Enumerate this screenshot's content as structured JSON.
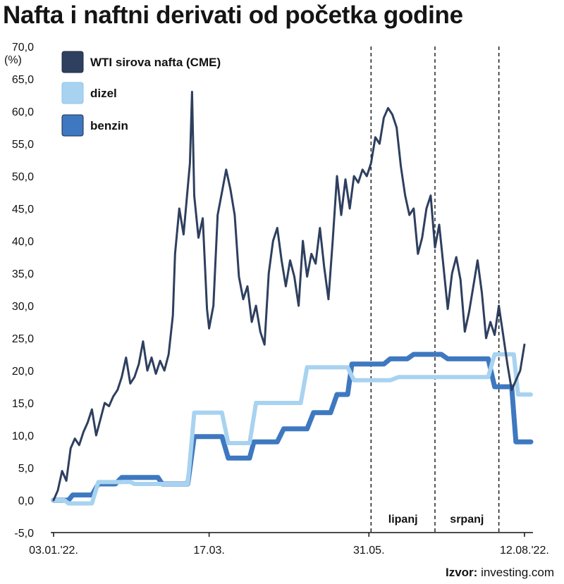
{
  "title": "Nafta i naftni derivati od početka godine",
  "source": {
    "label": "Izvor:",
    "value": "investing.com"
  },
  "chart_data": {
    "type": "line",
    "ylabel": "(%)",
    "ylim": [
      -5,
      70
    ],
    "yticks": [
      -5,
      0,
      5,
      10,
      15,
      20,
      25,
      30,
      35,
      40,
      45,
      50,
      55,
      60,
      65,
      70
    ],
    "ytick_labels": [
      "-5,0",
      "0,0",
      "5,0",
      "10,0",
      "15,0",
      "20,0",
      "25,0",
      "30,0",
      "35,0",
      "40,0",
      "45,0",
      "50,0",
      "55,0",
      "60,0",
      "65,0",
      "70,0"
    ],
    "xlim": [
      "2022-01-03",
      "2022-08-16"
    ],
    "xticks": [
      "2022-01-03",
      "2022-03-17",
      "2022-05-31",
      "2022-08-12"
    ],
    "xtick_labels": [
      "03.01.'22.",
      "17.03.",
      "31.05.",
      "12.08.'22."
    ],
    "period_lines": [
      "2022-06-01",
      "2022-07-01",
      "2022-07-31"
    ],
    "period_labels": [
      {
        "text": "lipanj",
        "from": "2022-06-01",
        "to": "2022-07-01"
      },
      {
        "text": "srpanj",
        "from": "2022-07-01",
        "to": "2022-07-31"
      }
    ],
    "legend_position": "top-left",
    "grid": false,
    "colors": {
      "wti": "#2e3f5f",
      "dizel": "#a8d3f0",
      "benzin": "#3e78c0"
    },
    "series": [
      {
        "name": "benzin",
        "key": "benzin",
        "points": [
          [
            "2022-01-03",
            0
          ],
          [
            "2022-01-10",
            0
          ],
          [
            "2022-01-12",
            0.8
          ],
          [
            "2022-01-21",
            0.8
          ],
          [
            "2022-01-24",
            2.5
          ],
          [
            "2022-02-01",
            2.5
          ],
          [
            "2022-02-04",
            3.5
          ],
          [
            "2022-02-21",
            3.5
          ],
          [
            "2022-02-23",
            2.5
          ],
          [
            "2022-03-07",
            2.5
          ],
          [
            "2022-03-10",
            9.8
          ],
          [
            "2022-03-23",
            9.8
          ],
          [
            "2022-03-26",
            6.5
          ],
          [
            "2022-04-05",
            6.5
          ],
          [
            "2022-04-07",
            9
          ],
          [
            "2022-04-18",
            9
          ],
          [
            "2022-04-21",
            11
          ],
          [
            "2022-05-02",
            11
          ],
          [
            "2022-05-05",
            13.5
          ],
          [
            "2022-05-13",
            13.5
          ],
          [
            "2022-05-16",
            16.3
          ],
          [
            "2022-05-21",
            16.3
          ],
          [
            "2022-05-23",
            21
          ],
          [
            "2022-06-07",
            21
          ],
          [
            "2022-06-10",
            21.8
          ],
          [
            "2022-06-18",
            21.8
          ],
          [
            "2022-06-21",
            22.5
          ],
          [
            "2022-07-04",
            22.5
          ],
          [
            "2022-07-07",
            21.8
          ],
          [
            "2022-07-26",
            21.8
          ],
          [
            "2022-07-29",
            17.5
          ],
          [
            "2022-08-06",
            17.5
          ],
          [
            "2022-08-08",
            9
          ],
          [
            "2022-08-15",
            9
          ]
        ]
      },
      {
        "name": "dizel",
        "key": "dizel",
        "points": [
          [
            "2022-01-03",
            0
          ],
          [
            "2022-01-08",
            0
          ],
          [
            "2022-01-10",
            -0.5
          ],
          [
            "2022-01-21",
            -0.5
          ],
          [
            "2022-01-24",
            2.8
          ],
          [
            "2022-02-08",
            2.8
          ],
          [
            "2022-02-10",
            2.5
          ],
          [
            "2022-03-07",
            2.5
          ],
          [
            "2022-03-10",
            13.5
          ],
          [
            "2022-03-23",
            13.5
          ],
          [
            "2022-03-26",
            8.8
          ],
          [
            "2022-04-05",
            8.8
          ],
          [
            "2022-04-08",
            15
          ],
          [
            "2022-04-29",
            15
          ],
          [
            "2022-05-02",
            20.5
          ],
          [
            "2022-05-21",
            20.5
          ],
          [
            "2022-05-24",
            18.5
          ],
          [
            "2022-06-10",
            18.5
          ],
          [
            "2022-06-14",
            19
          ],
          [
            "2022-07-26",
            19
          ],
          [
            "2022-07-29",
            22.5
          ],
          [
            "2022-08-07",
            22.5
          ],
          [
            "2022-08-09",
            16.3
          ],
          [
            "2022-08-15",
            16.3
          ]
        ]
      },
      {
        "name": "WTI sirova nafta (CME)",
        "key": "wti",
        "points": [
          [
            "2022-01-03",
            0
          ],
          [
            "2022-01-05",
            1.5
          ],
          [
            "2022-01-07",
            4.5
          ],
          [
            "2022-01-09",
            3
          ],
          [
            "2022-01-11",
            8
          ],
          [
            "2022-01-13",
            9.5
          ],
          [
            "2022-01-15",
            8.5
          ],
          [
            "2022-01-17",
            10.5
          ],
          [
            "2022-01-19",
            12
          ],
          [
            "2022-01-21",
            14
          ],
          [
            "2022-01-23",
            10
          ],
          [
            "2022-01-25",
            12.5
          ],
          [
            "2022-01-27",
            15
          ],
          [
            "2022-01-29",
            14.5
          ],
          [
            "2022-01-31",
            16
          ],
          [
            "2022-02-02",
            17
          ],
          [
            "2022-02-04",
            19
          ],
          [
            "2022-02-06",
            22
          ],
          [
            "2022-02-08",
            18
          ],
          [
            "2022-02-10",
            19
          ],
          [
            "2022-02-12",
            21
          ],
          [
            "2022-02-14",
            24.5
          ],
          [
            "2022-02-16",
            20
          ],
          [
            "2022-02-18",
            22
          ],
          [
            "2022-02-20",
            19.5
          ],
          [
            "2022-02-22",
            21.5
          ],
          [
            "2022-02-24",
            20
          ],
          [
            "2022-02-26",
            22.5
          ],
          [
            "2022-02-28",
            28.5
          ],
          [
            "2022-03-01",
            38
          ],
          [
            "2022-03-03",
            45
          ],
          [
            "2022-03-05",
            41
          ],
          [
            "2022-03-08",
            52
          ],
          [
            "2022-03-09",
            63
          ],
          [
            "2022-03-10",
            47
          ],
          [
            "2022-03-12",
            40.5
          ],
          [
            "2022-03-14",
            43.5
          ],
          [
            "2022-03-16",
            29.5
          ],
          [
            "2022-03-17",
            26.5
          ],
          [
            "2022-03-19",
            30
          ],
          [
            "2022-03-21",
            44
          ],
          [
            "2022-03-23",
            47.5
          ],
          [
            "2022-03-25",
            51
          ],
          [
            "2022-03-27",
            48
          ],
          [
            "2022-03-29",
            44
          ],
          [
            "2022-03-31",
            34.5
          ],
          [
            "2022-04-02",
            31
          ],
          [
            "2022-04-04",
            33
          ],
          [
            "2022-04-06",
            27.5
          ],
          [
            "2022-04-08",
            30
          ],
          [
            "2022-04-10",
            26
          ],
          [
            "2022-04-12",
            24
          ],
          [
            "2022-04-14",
            35
          ],
          [
            "2022-04-16",
            40
          ],
          [
            "2022-04-18",
            42
          ],
          [
            "2022-04-20",
            37
          ],
          [
            "2022-04-22",
            33
          ],
          [
            "2022-04-24",
            37
          ],
          [
            "2022-04-26",
            34.5
          ],
          [
            "2022-04-28",
            30
          ],
          [
            "2022-04-30",
            40
          ],
          [
            "2022-05-02",
            34.5
          ],
          [
            "2022-05-04",
            38
          ],
          [
            "2022-05-06",
            36.5
          ],
          [
            "2022-05-08",
            42
          ],
          [
            "2022-05-10",
            36
          ],
          [
            "2022-05-12",
            31
          ],
          [
            "2022-05-14",
            40
          ],
          [
            "2022-05-16",
            50
          ],
          [
            "2022-05-18",
            44
          ],
          [
            "2022-05-20",
            49.5
          ],
          [
            "2022-05-22",
            45
          ],
          [
            "2022-05-24",
            50
          ],
          [
            "2022-05-26",
            49
          ],
          [
            "2022-05-28",
            51
          ],
          [
            "2022-05-30",
            50
          ],
          [
            "2022-06-01",
            52
          ],
          [
            "2022-06-03",
            56
          ],
          [
            "2022-06-05",
            55
          ],
          [
            "2022-06-07",
            59
          ],
          [
            "2022-06-09",
            60.5
          ],
          [
            "2022-06-11",
            59.5
          ],
          [
            "2022-06-13",
            57.5
          ],
          [
            "2022-06-15",
            51.5
          ],
          [
            "2022-06-17",
            47
          ],
          [
            "2022-06-19",
            44
          ],
          [
            "2022-06-21",
            45
          ],
          [
            "2022-06-23",
            38
          ],
          [
            "2022-06-25",
            40.5
          ],
          [
            "2022-06-27",
            45
          ],
          [
            "2022-06-29",
            47
          ],
          [
            "2022-07-01",
            39
          ],
          [
            "2022-07-03",
            42.5
          ],
          [
            "2022-07-05",
            36
          ],
          [
            "2022-07-07",
            29.5
          ],
          [
            "2022-07-09",
            35
          ],
          [
            "2022-07-11",
            37.5
          ],
          [
            "2022-07-13",
            34
          ],
          [
            "2022-07-15",
            26
          ],
          [
            "2022-07-17",
            29
          ],
          [
            "2022-07-19",
            33
          ],
          [
            "2022-07-21",
            37
          ],
          [
            "2022-07-23",
            32
          ],
          [
            "2022-07-25",
            25
          ],
          [
            "2022-07-27",
            27.5
          ],
          [
            "2022-07-29",
            25.5
          ],
          [
            "2022-07-31",
            30
          ],
          [
            "2022-08-02",
            25.5
          ],
          [
            "2022-08-04",
            21
          ],
          [
            "2022-08-06",
            17
          ],
          [
            "2022-08-08",
            18.5
          ],
          [
            "2022-08-10",
            20
          ],
          [
            "2022-08-12",
            24
          ]
        ]
      }
    ]
  }
}
